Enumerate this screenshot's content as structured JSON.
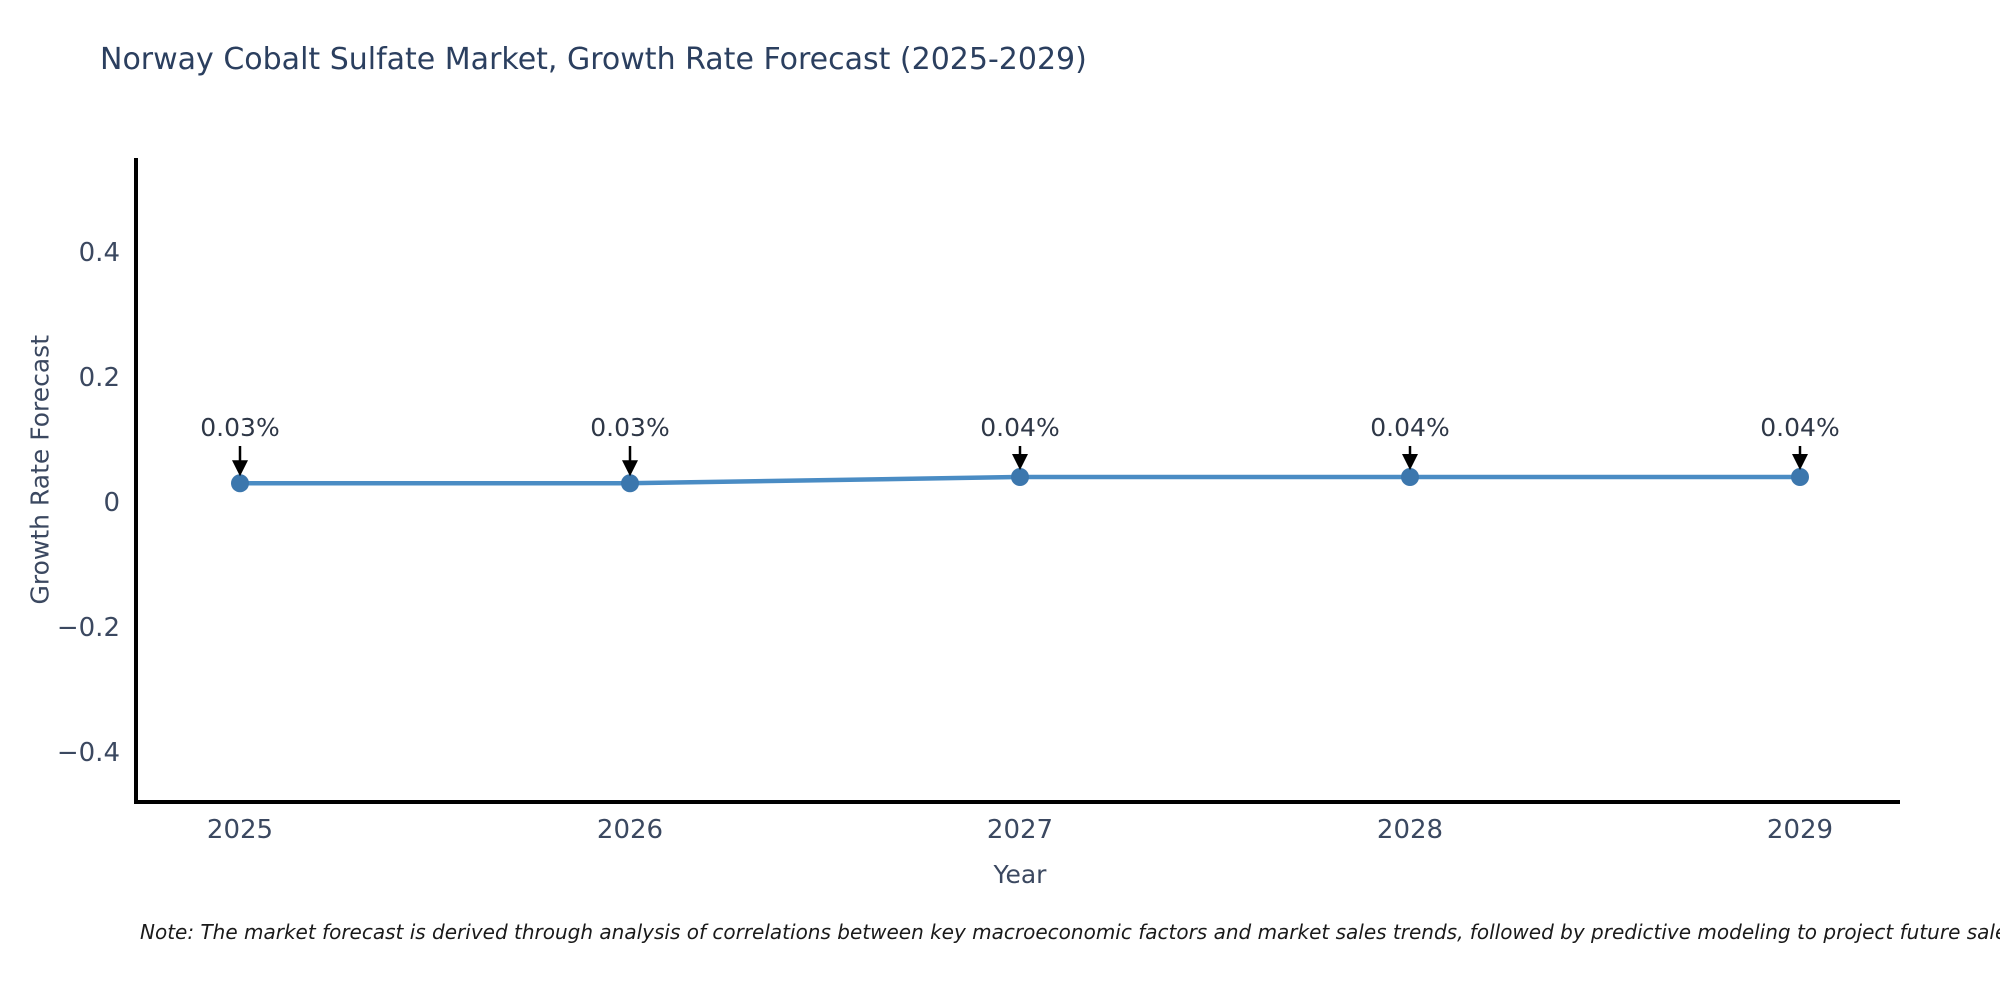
{
  "note": "Note: The market forecast is derived through analysis of correlations between key macroeconomic factors and market sales trends, followed by predictive modeling to project future sales.",
  "chart_data": {
    "type": "line",
    "title": "Norway Cobalt Sulfate Market, Growth Rate Forecast (2025-2029)",
    "xlabel": "Year",
    "ylabel": "Growth Rate Forecast",
    "x": [
      "2025",
      "2026",
      "2027",
      "2028",
      "2029"
    ],
    "series": [
      {
        "name": "Growth Rate Forecast",
        "values": [
          0.03,
          0.03,
          0.04,
          0.04,
          0.04
        ],
        "unit": "%"
      }
    ],
    "point_labels": [
      "0.03%",
      "0.03%",
      "0.04%",
      "0.04%",
      "0.04%"
    ],
    "yticks": [
      0.4,
      0.2,
      0,
      -0.2,
      -0.4
    ],
    "ytick_labels": [
      "0.4",
      "0.2",
      "0",
      "−0.2",
      "−0.4"
    ],
    "ylim": [
      -0.48,
      0.55
    ],
    "grid": false,
    "legend": "none",
    "colors": {
      "line": "#4a8cc4",
      "marker": "#3c77ad",
      "annotation_text": "#2e3747",
      "annotation_arrow": "#000000",
      "axis_spine": "#000000",
      "tick_label": "#3b4860",
      "title": "#2b3f5f"
    }
  }
}
